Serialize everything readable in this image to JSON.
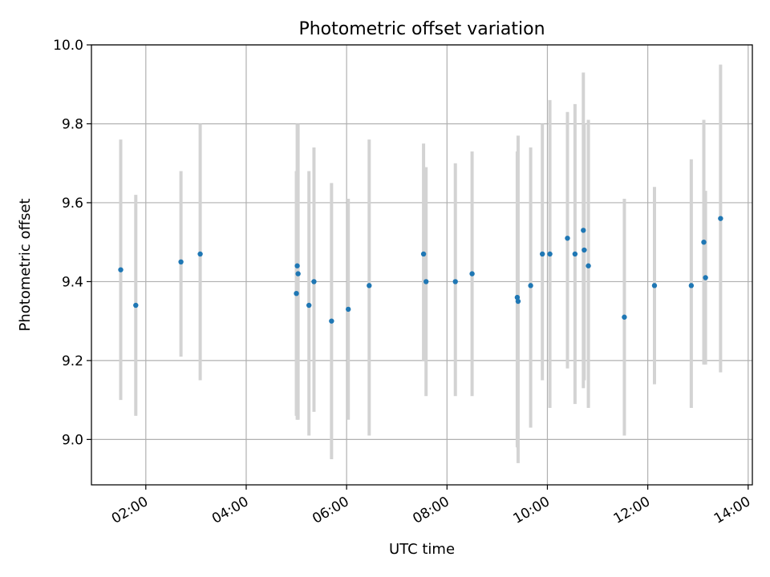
{
  "chart_data": {
    "type": "scatter",
    "title": "Photometric offset variation",
    "xlabel": "UTC time",
    "ylabel": "Photometric offset",
    "xlim": [
      "00:55",
      "14:05"
    ],
    "ylim": [
      8.885,
      10.0
    ],
    "xticks": [
      "02:00",
      "04:00",
      "06:00",
      "08:00",
      "10:00",
      "12:00",
      "14:00"
    ],
    "yticks": [
      "9.0",
      "9.2",
      "9.4",
      "9.6",
      "9.8",
      "10.0"
    ],
    "grid": true,
    "marker_color": "#1f77b4",
    "errorbar_color": "#d3d3d3",
    "points": [
      {
        "t": "01:30",
        "y": 9.43,
        "lo": 9.1,
        "hi": 9.76
      },
      {
        "t": "01:48",
        "y": 9.34,
        "lo": 9.06,
        "hi": 9.62
      },
      {
        "t": "02:42",
        "y": 9.45,
        "lo": 9.21,
        "hi": 9.68
      },
      {
        "t": "03:05",
        "y": 9.47,
        "lo": 9.15,
        "hi": 9.8
      },
      {
        "t": "05:00",
        "y": 9.37,
        "lo": 9.06,
        "hi": 9.68
      },
      {
        "t": "05:01",
        "y": 9.44,
        "lo": 9.05,
        "hi": 9.8
      },
      {
        "t": "05:02",
        "y": 9.42,
        "lo": 9.05,
        "hi": 9.8
      },
      {
        "t": "05:15",
        "y": 9.34,
        "lo": 9.01,
        "hi": 9.68
      },
      {
        "t": "05:21",
        "y": 9.4,
        "lo": 9.07,
        "hi": 9.74
      },
      {
        "t": "05:42",
        "y": 9.3,
        "lo": 8.95,
        "hi": 9.65
      },
      {
        "t": "06:02",
        "y": 9.33,
        "lo": 9.05,
        "hi": 9.61
      },
      {
        "t": "06:27",
        "y": 9.39,
        "lo": 9.01,
        "hi": 9.76
      },
      {
        "t": "07:32",
        "y": 9.47,
        "lo": 9.2,
        "hi": 9.75
      },
      {
        "t": "07:35",
        "y": 9.4,
        "lo": 9.11,
        "hi": 9.69
      },
      {
        "t": "08:10",
        "y": 9.4,
        "lo": 9.11,
        "hi": 9.7
      },
      {
        "t": "08:30",
        "y": 9.42,
        "lo": 9.11,
        "hi": 9.73
      },
      {
        "t": "09:24",
        "y": 9.36,
        "lo": 8.98,
        "hi": 9.73
      },
      {
        "t": "09:25",
        "y": 9.35,
        "lo": 8.94,
        "hi": 9.77
      },
      {
        "t": "09:40",
        "y": 9.39,
        "lo": 9.03,
        "hi": 9.74
      },
      {
        "t": "09:54",
        "y": 9.47,
        "lo": 9.15,
        "hi": 9.8
      },
      {
        "t": "10:03",
        "y": 9.47,
        "lo": 9.08,
        "hi": 9.86
      },
      {
        "t": "10:24",
        "y": 9.51,
        "lo": 9.18,
        "hi": 9.83
      },
      {
        "t": "10:33",
        "y": 9.47,
        "lo": 9.09,
        "hi": 9.85
      },
      {
        "t": "10:43",
        "y": 9.53,
        "lo": 9.13,
        "hi": 9.93
      },
      {
        "t": "10:44",
        "y": 9.48,
        "lo": 9.15,
        "hi": 9.8
      },
      {
        "t": "10:49",
        "y": 9.44,
        "lo": 9.08,
        "hi": 9.81
      },
      {
        "t": "11:32",
        "y": 9.31,
        "lo": 9.01,
        "hi": 9.61
      },
      {
        "t": "12:08",
        "y": 9.39,
        "lo": 9.14,
        "hi": 9.64
      },
      {
        "t": "12:52",
        "y": 9.39,
        "lo": 9.08,
        "hi": 9.71
      },
      {
        "t": "13:07",
        "y": 9.5,
        "lo": 9.19,
        "hi": 9.81
      },
      {
        "t": "13:09",
        "y": 9.41,
        "lo": 9.19,
        "hi": 9.63
      },
      {
        "t": "13:27",
        "y": 9.56,
        "lo": 9.17,
        "hi": 9.95
      }
    ]
  }
}
